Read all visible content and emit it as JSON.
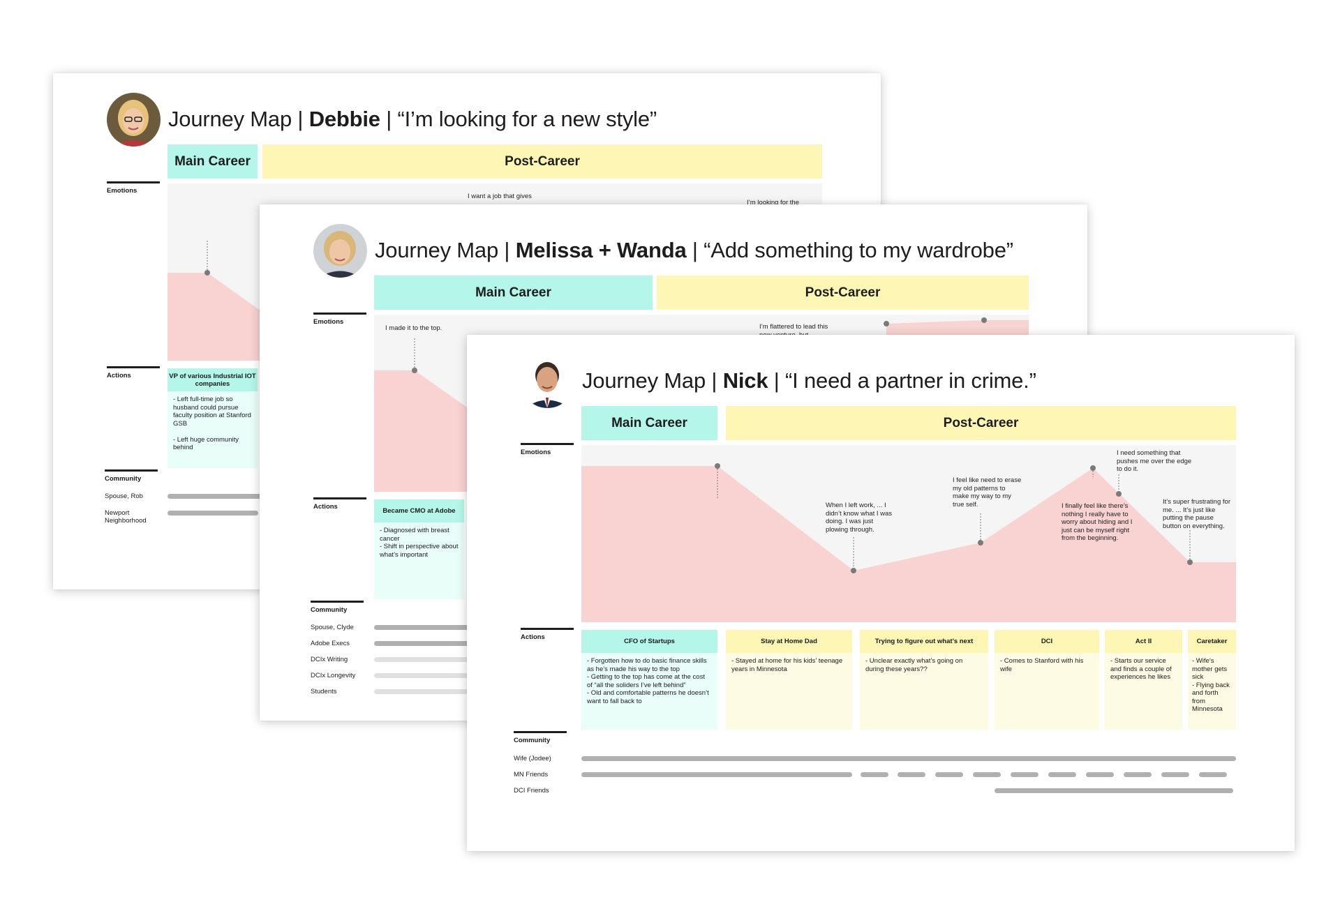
{
  "colors": {
    "main_career": "#b4f6ea",
    "post_career": "#fef6b4",
    "emotion_fill": "#f9d2d2",
    "community_bar": "#b0b0b0"
  },
  "card1": {
    "avatar": "woman-glasses-portrait",
    "title_prefix": "Journey Map | ",
    "name": "Debbie",
    "title_quote": " | “I’m looking for a new style”",
    "phase_main": "Main Career",
    "phase_post": "Post-Career",
    "emotions_label": "Emotions",
    "actions_label": "Actions",
    "community_label": "Community",
    "notes": [
      "I want a job that gives",
      "I’m looking for the"
    ],
    "action_title": "VP of various Industrial IOT companies",
    "action_body": "- Left full-time job so husband could pursue faculty position at Stanford GSB\n\n- Left huge community behind",
    "community": [
      "Spouse, Rob",
      "Newport Neighborhood"
    ]
  },
  "card2": {
    "avatar": "woman-blonde-portrait",
    "title_prefix": "Journey Map | ",
    "name": "Melissa + Wanda",
    "title_quote": " | “Add something to my wardrobe”",
    "phase_main": "Main Career",
    "phase_post": "Post-Career",
    "emotions_label": "Emotions",
    "actions_label": "Actions",
    "community_label": "Community",
    "notes": [
      "I made it to the top.",
      "I’m flattered to lead this new venture, but"
    ],
    "action_title": "Became CMO at Adobe",
    "action_body": "- Diagnosed with breast cancer\n- Shift in perspective about what’s important",
    "community": [
      "Spouse, Clyde",
      "Adobe Execs",
      "DCIx  Writing",
      "DCIx Longevity",
      "Students"
    ]
  },
  "card3": {
    "avatar": "man-suit-portrait",
    "title_prefix": "Journey Map | ",
    "name": "Nick",
    "title_quote": " | “I need a partner in crime.”",
    "phase_main": "Main Career",
    "phase_post": "Post-Career",
    "emotions_label": "Emotions",
    "actions_label": "Actions",
    "community_label": "Community",
    "notes": [
      "When I left work, ... I didn’t know what I was doing. I was just plowing through.",
      "I feel like need to erase my old patterns to make my way to my true self.",
      "I need something that pushes me over the edge to do it.",
      "I finally feel like there’s nothing I really have to worry about hiding and I just can be myself right from the beginning.",
      "It’s super frustrating for me. ... It’s just like putting the pause button on everything."
    ],
    "actions": [
      {
        "title": "CFO of Startups",
        "body": "- Forgotten how to do basic finance skills as he’s made his way to the top\n- Getting to the top has come at the cost of “all the soliders I’ve left behind”\n- Old and comfortable patterns he doesn’t want to fall back to"
      },
      {
        "title": "Stay at Home Dad",
        "body": "- Stayed at home for his kids’ teenage years in Minnesota"
      },
      {
        "title": "Trying to figure out what’s next",
        "body": "- Unclear exactly what’s going on during these years??"
      },
      {
        "title": "DCI",
        "body": "- Comes to Stanford with his wife"
      },
      {
        "title": "Act II",
        "body": "- Starts our service and finds a couple of experiences he likes"
      },
      {
        "title": "Caretaker",
        "body": "- Wife’s mother gets sick\n- Flying back and forth from Minnesota"
      }
    ],
    "community": [
      "Wife (Jodee)",
      "MN Friends",
      "DCI Friends"
    ]
  }
}
